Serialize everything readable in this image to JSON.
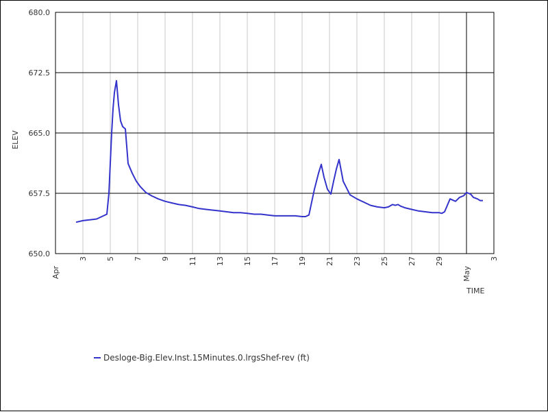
{
  "chart_data": {
    "type": "line",
    "title": "",
    "xlabel": "TIME",
    "ylabel": "ELEV",
    "ylim": [
      650.0,
      680.0
    ],
    "xlim": [
      "04-01",
      "05-03"
    ],
    "y_ticks": [
      "650.0",
      "657.5",
      "665.0",
      "672.5",
      "680.0"
    ],
    "x_month_labels": [
      {
        "label": "Apr",
        "day": 1
      },
      {
        "label": "May",
        "day": 31
      }
    ],
    "x_day_labels": [
      {
        "label": "3",
        "day": 3
      },
      {
        "label": "5",
        "day": 5
      },
      {
        "label": "7",
        "day": 7
      },
      {
        "label": "9",
        "day": 9
      },
      {
        "label": "11",
        "day": 11
      },
      {
        "label": "13",
        "day": 13
      },
      {
        "label": "15",
        "day": 15
      },
      {
        "label": "17",
        "day": 17
      },
      {
        "label": "19",
        "day": 19
      },
      {
        "label": "21",
        "day": 21
      },
      {
        "label": "23",
        "day": 23
      },
      {
        "label": "25",
        "day": 25
      },
      {
        "label": "27",
        "day": 27
      },
      {
        "label": "29",
        "day": 29
      },
      {
        "label": "3",
        "day": 33
      }
    ],
    "grid": true,
    "legend_position": "bottom-left",
    "series": [
      {
        "name": "Desloge-Big.Elev.Inst.15Minutes.0.lrgsShef-rev (ft)",
        "color": "#3333cc",
        "x": [
          2.5,
          3.0,
          3.5,
          4.0,
          4.5,
          4.75,
          4.9,
          5.1,
          5.2,
          5.3,
          5.45,
          5.6,
          5.75,
          5.9,
          6.1,
          6.3,
          6.6,
          6.9,
          7.2,
          7.6,
          8.0,
          8.5,
          9.0,
          9.5,
          10,
          10.5,
          11,
          11.5,
          12,
          12.5,
          13,
          13.5,
          14,
          14.5,
          15,
          15.5,
          16,
          16.5,
          17,
          17.5,
          18,
          18.5,
          19,
          19.25,
          19.5,
          19.9,
          20.2,
          20.4,
          20.6,
          20.85,
          21.1,
          21.3,
          21.5,
          21.7,
          22.0,
          22.5,
          23,
          23.5,
          24,
          24.5,
          25,
          25.3,
          25.6,
          25.8,
          26.0,
          26.2,
          26.5,
          27,
          27.5,
          28,
          28.5,
          29,
          29.2,
          29.4,
          29.6,
          29.8,
          30.2,
          30.5,
          30.8,
          31.0,
          31.3,
          31.5,
          31.8,
          32.0,
          32.2
        ],
        "y": [
          653.9,
          654.1,
          654.2,
          654.3,
          654.7,
          654.9,
          657.5,
          665.0,
          668.0,
          670.0,
          671.5,
          668.5,
          666.5,
          665.8,
          665.5,
          661.2,
          660.0,
          659.0,
          658.3,
          657.6,
          657.2,
          656.8,
          656.5,
          656.3,
          656.1,
          656.0,
          655.8,
          655.6,
          655.5,
          655.4,
          655.3,
          655.2,
          655.1,
          655.1,
          655.0,
          654.9,
          654.9,
          654.8,
          654.7,
          654.7,
          654.7,
          654.7,
          654.6,
          654.6,
          654.8,
          658.0,
          660.0,
          661.1,
          659.5,
          658.0,
          657.4,
          659.0,
          660.5,
          661.7,
          659.0,
          657.3,
          656.8,
          656.4,
          656.0,
          655.8,
          655.7,
          655.8,
          656.1,
          656.0,
          656.1,
          655.9,
          655.7,
          655.5,
          655.3,
          655.2,
          655.1,
          655.1,
          655.0,
          655.2,
          656.0,
          656.8,
          656.5,
          657.0,
          657.2,
          657.6,
          657.4,
          657.0,
          656.8,
          656.6,
          656.6
        ]
      }
    ]
  }
}
